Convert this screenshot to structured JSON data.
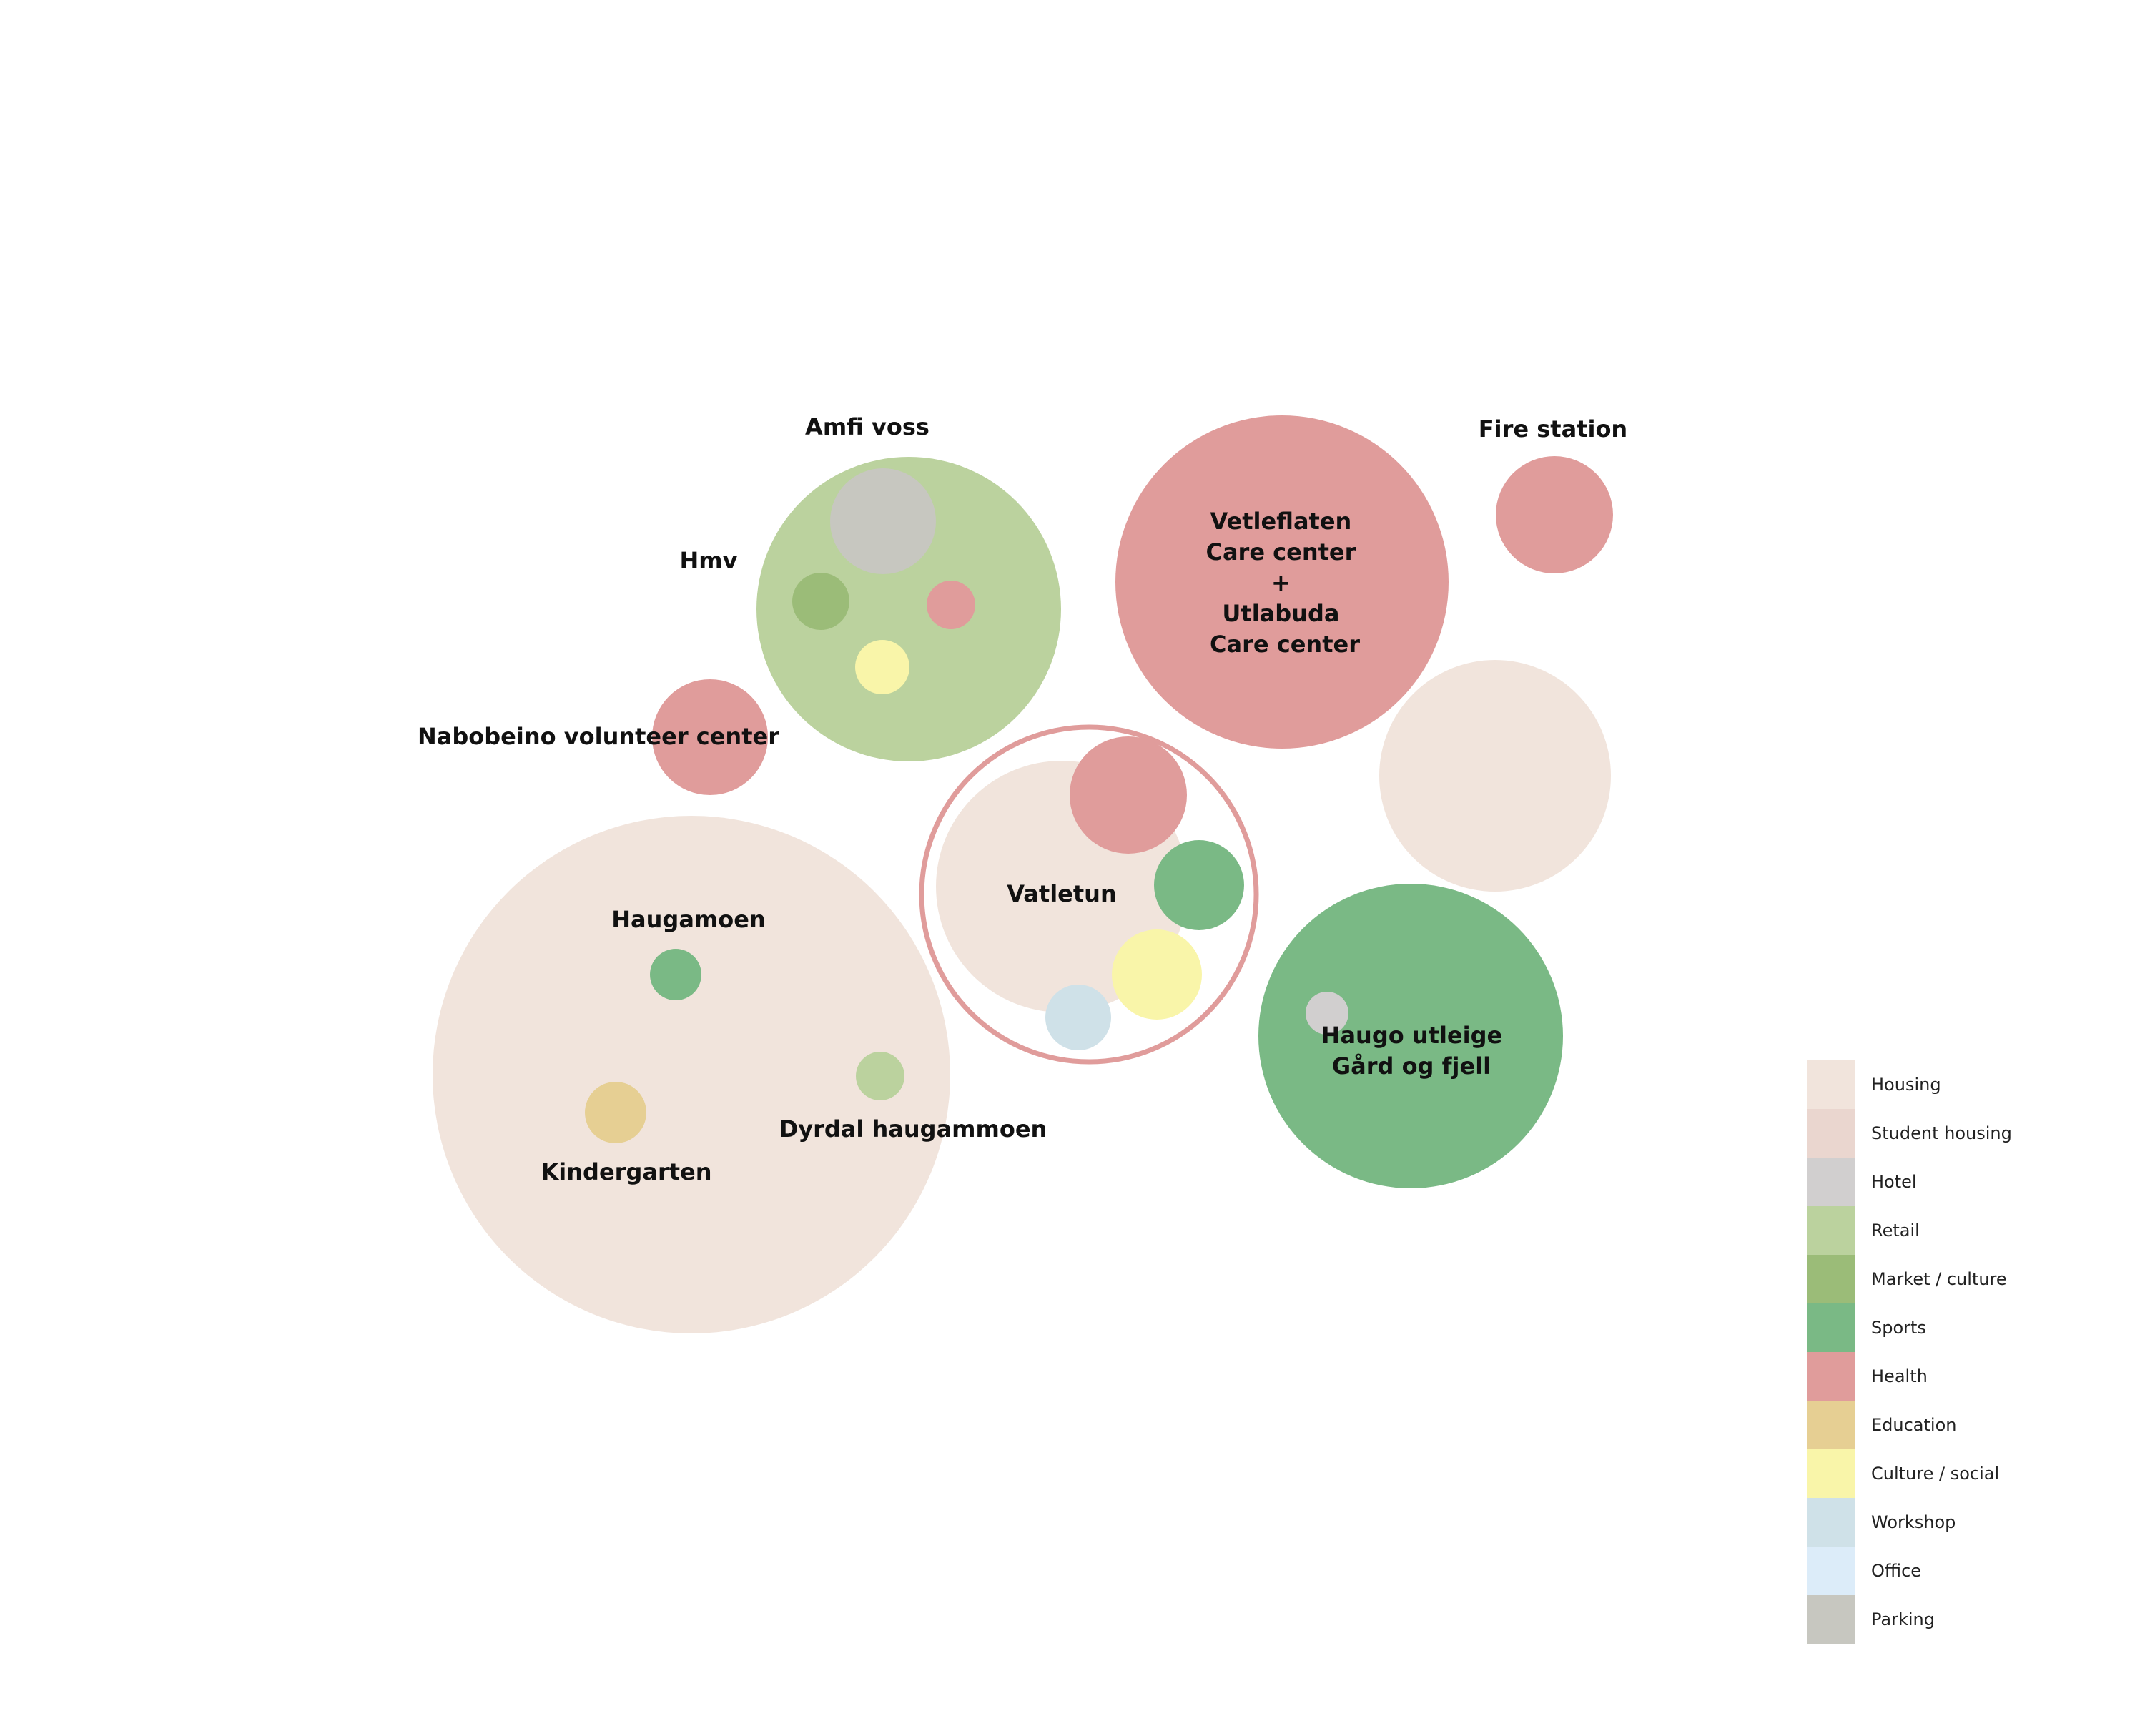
{
  "legend": [
    {
      "key": "housing",
      "label": "Housing",
      "color": "#f1e4dc"
    },
    {
      "key": "student_housing",
      "label": "Student housing",
      "color": "#ead6cf"
    },
    {
      "key": "hotel",
      "label": "Hotel",
      "color": "#d1cfcf"
    },
    {
      "key": "retail",
      "label": "Retail",
      "color": "#bbd29e"
    },
    {
      "key": "market_culture",
      "label": "Market / culture",
      "color": "#9bbc78"
    },
    {
      "key": "sports",
      "label": "Sports",
      "color": "#7ab985"
    },
    {
      "key": "health",
      "label": "Health",
      "color": "#e09c9b"
    },
    {
      "key": "education",
      "label": "Education",
      "color": "#e6cf93"
    },
    {
      "key": "culture_social",
      "label": "Culture / social",
      "color": "#f9f5a9"
    },
    {
      "key": "workshop",
      "label": "Workshop",
      "color": "#cfe1e8"
    },
    {
      "key": "office",
      "label": "Office",
      "color": "#dcecf9"
    },
    {
      "key": "parking",
      "label": "Parking",
      "color": "#c7c7c0"
    }
  ],
  "labels": {
    "amfi_voss": "Amfi voss",
    "hmv": "Hmv",
    "fire_station": "Fire station",
    "nabobeino": "Nabobeino volunteer center",
    "vetleflaten_lines": [
      "Vetleflaten",
      "Care center",
      "+",
      "Utlabuda",
      "Care center"
    ],
    "vatletun": "Vatletun",
    "haugamoen": "Haugamoen",
    "dyrdal": "Dyrdal haugammoen",
    "kindergarten": "Kindergarten",
    "haugo_lines": [
      "Haugo utleige",
      "Gård og fjell"
    ]
  }
}
